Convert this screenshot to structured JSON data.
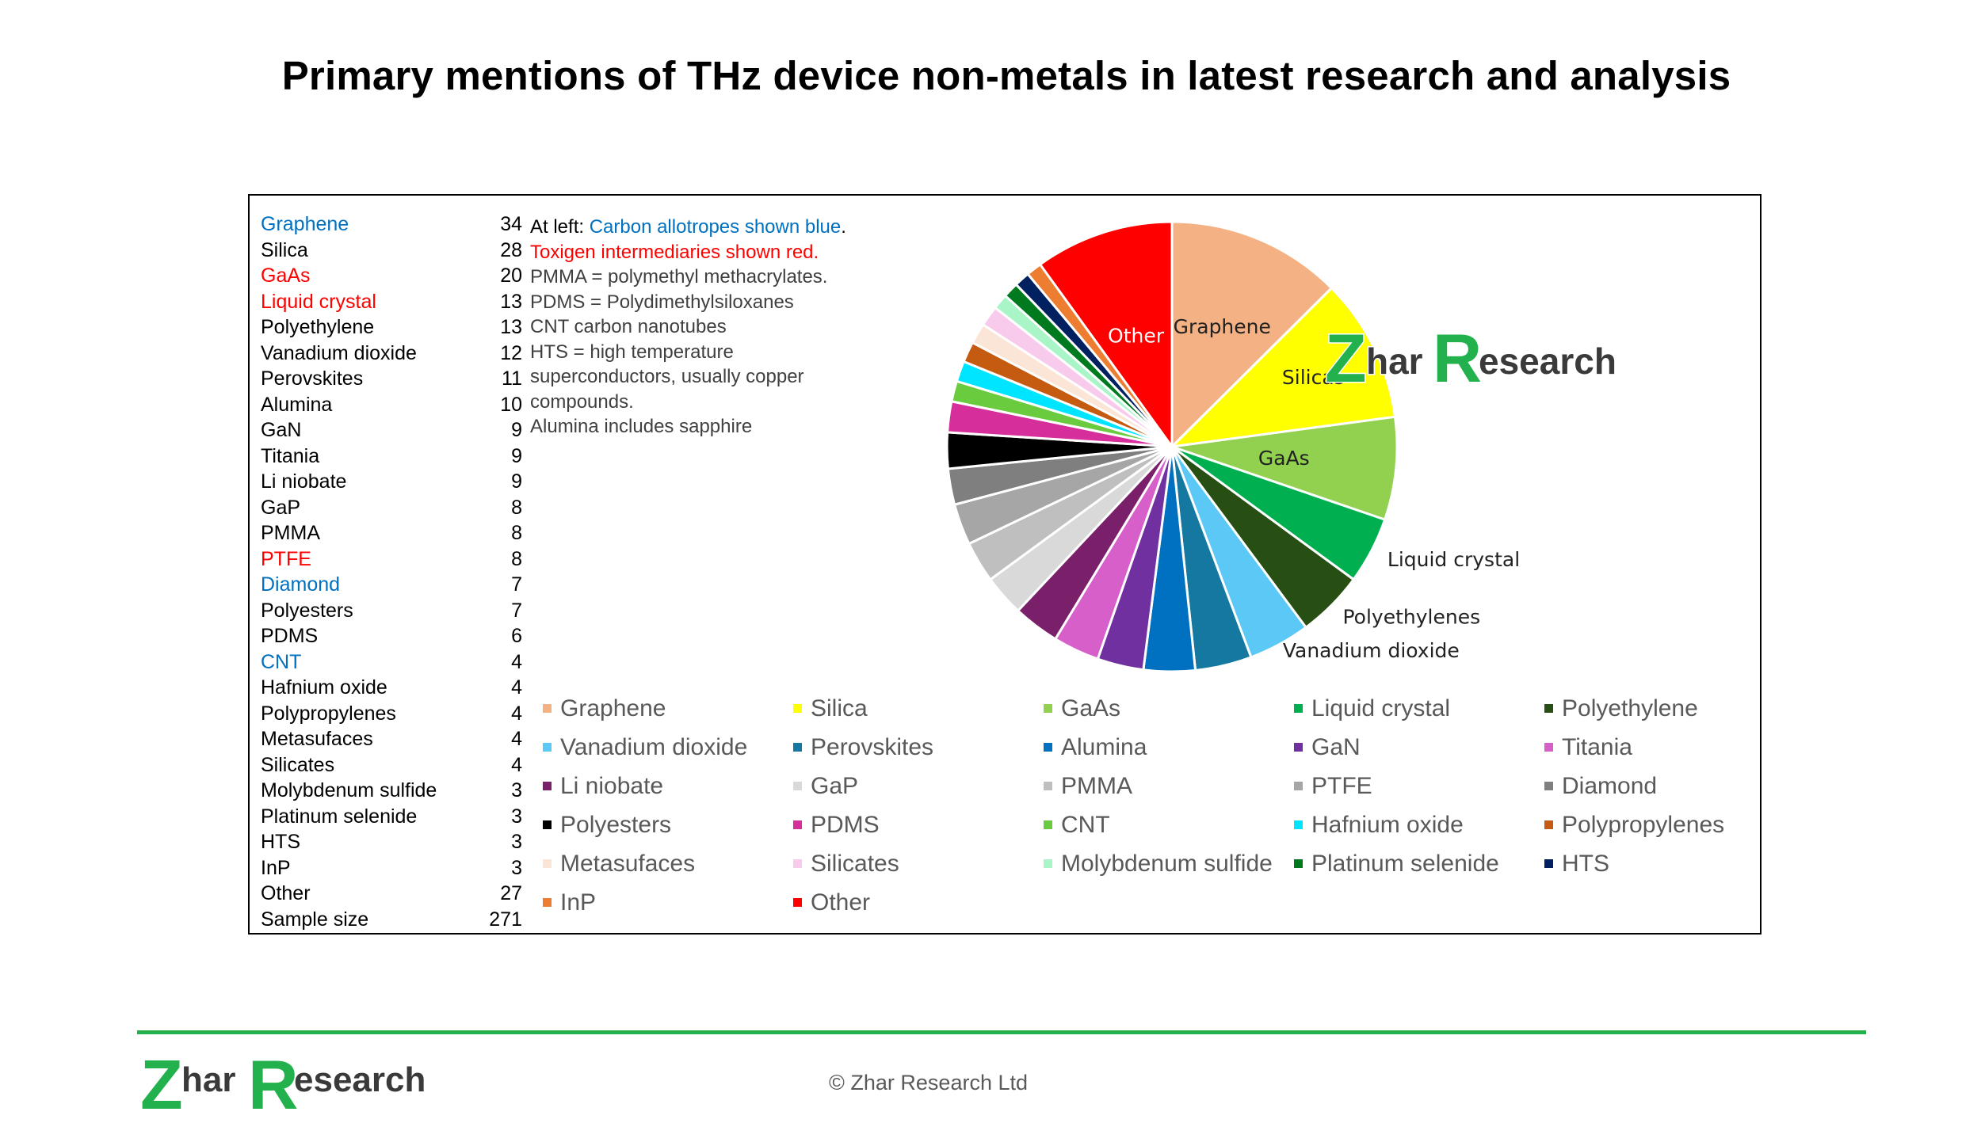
{
  "title": "Primary mentions of THz device non-metals in latest research and analysis",
  "table": [
    {
      "label": "Graphene",
      "value": "34",
      "color": "blue"
    },
    {
      "label": "Silica",
      "value": "28",
      "color": "black"
    },
    {
      "label": "GaAs",
      "value": "20",
      "color": "red"
    },
    {
      "label": "Liquid crystal",
      "value": "13",
      "color": "red"
    },
    {
      "label": "Polyethylene",
      "value": "13",
      "color": "black"
    },
    {
      "label": "Vanadium dioxide",
      "value": "12",
      "color": "black"
    },
    {
      "label": "Perovskites",
      "value": "11",
      "color": "black"
    },
    {
      "label": "Alumina",
      "value": "10",
      "color": "black"
    },
    {
      "label": "GaN",
      "value": "9",
      "color": "black"
    },
    {
      "label": "Titania",
      "value": "9",
      "color": "black"
    },
    {
      "label": "Li niobate",
      "value": "9",
      "color": "black"
    },
    {
      "label": "GaP",
      "value": "8",
      "color": "black"
    },
    {
      "label": "PMMA",
      "value": "8",
      "color": "black"
    },
    {
      "label": "PTFE",
      "value": "8",
      "color": "red"
    },
    {
      "label": "Diamond",
      "value": "7",
      "color": "blue"
    },
    {
      "label": "Polyesters",
      "value": "7",
      "color": "black"
    },
    {
      "label": "PDMS",
      "value": "6",
      "color": "black"
    },
    {
      "label": "CNT",
      "value": "4",
      "color": "blue"
    },
    {
      "label": "Hafnium oxide",
      "value": "4",
      "color": "black"
    },
    {
      "label": "Polypropylenes",
      "value": "4",
      "color": "black"
    },
    {
      "label": "Metasufaces",
      "value": "4",
      "color": "black"
    },
    {
      "label": "Silicates",
      "value": "4",
      "color": "black"
    },
    {
      "label": "Molybdenum sulfide",
      "value": "3",
      "color": "black"
    },
    {
      "label": "Platinum selenide",
      "value": "3",
      "color": "black"
    },
    {
      "label": "HTS",
      "value": "3",
      "color": "black"
    },
    {
      "label": "InP",
      "value": "3",
      "color": "black"
    },
    {
      "label": "Other",
      "value": "27",
      "color": "black"
    },
    {
      "label": "Sample size",
      "value": "271",
      "color": "black"
    }
  ],
  "notes": {
    "line1_prefix": "At left: ",
    "line1_blue": "Carbon allotropes shown blue",
    "line1_suffix": ".",
    "line2_red": "Toxigen intermediaries shown red.",
    "line3": "PMMA = polymethyl methacrylates.",
    "line4": "PDMS = Polydimethylsiloxanes",
    "line5": "CNT carbon nanotubes",
    "line6": "HTS = high temperature",
    "line7": "superconductors, usually copper",
    "line8": "compounds.",
    "line9": "Alumina includes sapphire"
  },
  "watermark": {
    "z": "Z",
    "har": "har ",
    "r": "R",
    "esearch": "esearch"
  },
  "chart_data": {
    "type": "pie",
    "title": "",
    "slices": [
      {
        "name": "Graphene",
        "value": 34,
        "color": "#F4B183"
      },
      {
        "name": "Silica",
        "value": 28,
        "color": "#FFFF00"
      },
      {
        "name": "GaAs",
        "value": 20,
        "color": "#92D050"
      },
      {
        "name": "Liquid crystal",
        "value": 13,
        "color": "#00B050"
      },
      {
        "name": "Polyethylene",
        "value": 13,
        "color": "#274E13"
      },
      {
        "name": "Vanadium dioxide",
        "value": 12,
        "color": "#5BC8F5"
      },
      {
        "name": "Perovskites",
        "value": 11,
        "color": "#1478A0"
      },
      {
        "name": "Alumina",
        "value": 10,
        "color": "#0070C0"
      },
      {
        "name": "GaN",
        "value": 9,
        "color": "#7030A0"
      },
      {
        "name": "Titania",
        "value": 9,
        "color": "#D65FC9"
      },
      {
        "name": "Li niobate",
        "value": 9,
        "color": "#7A1F6A"
      },
      {
        "name": "GaP",
        "value": 8,
        "color": "#D9D9D9"
      },
      {
        "name": "PMMA",
        "value": 8,
        "color": "#BFBFBF"
      },
      {
        "name": "PTFE",
        "value": 8,
        "color": "#A6A6A6"
      },
      {
        "name": "Diamond",
        "value": 7,
        "color": "#7F7F7F"
      },
      {
        "name": "Polyesters",
        "value": 7,
        "color": "#000000"
      },
      {
        "name": "PDMS",
        "value": 6,
        "color": "#D62F9B"
      },
      {
        "name": "CNT",
        "value": 4,
        "color": "#6BCB3F"
      },
      {
        "name": "Hafnium oxide",
        "value": 4,
        "color": "#00E5FF"
      },
      {
        "name": "Polypropylenes",
        "value": 4,
        "color": "#C55A11"
      },
      {
        "name": "Metasufaces",
        "value": 4,
        "color": "#FBE5D6"
      },
      {
        "name": "Silicates",
        "value": 4,
        "color": "#F8CBED"
      },
      {
        "name": "Molybdenum sulfide",
        "value": 3,
        "color": "#A9F5C8"
      },
      {
        "name": "Platinum selenide",
        "value": 3,
        "color": "#007A1F"
      },
      {
        "name": "HTS",
        "value": 3,
        "color": "#002060"
      },
      {
        "name": "InP",
        "value": 3,
        "color": "#ED7D31"
      },
      {
        "name": "Other",
        "value": 27,
        "color": "#FF0000"
      }
    ],
    "slice_labels": [
      "Other",
      "Graphene",
      "Silicas",
      "GaAs",
      "Liquid crystal",
      "Polyethylenes",
      "Vanadium dioxide"
    ],
    "legend_placement": "bottom"
  },
  "footer": {
    "copyright": "© Zhar Research Ltd"
  }
}
